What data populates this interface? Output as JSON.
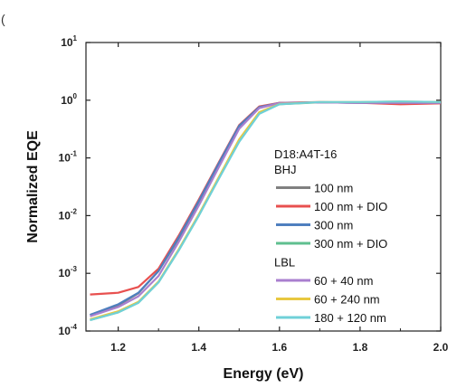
{
  "corner_mark": "(",
  "chart_data": {
    "type": "line",
    "xlabel": "Energy (eV)",
    "ylabel": "Normalized EQE",
    "xlim": [
      1.12,
      2.0
    ],
    "ylim": [
      0.0001,
      10
    ],
    "yscale": "log",
    "xticks": [
      "1.2",
      "1.4",
      "1.6",
      "1.8",
      "2.0"
    ],
    "xtick_values": [
      1.2,
      1.4,
      1.6,
      1.8,
      2.0
    ],
    "yticks": [
      {
        "base": "10",
        "exp": "-4",
        "value": 0.0001
      },
      {
        "base": "10",
        "exp": "-3",
        "value": 0.001
      },
      {
        "base": "10",
        "exp": "-2",
        "value": 0.01
      },
      {
        "base": "10",
        "exp": "-1",
        "value": 0.1
      },
      {
        "base": "10",
        "exp": "0",
        "value": 1
      },
      {
        "base": "10",
        "exp": "1",
        "value": 10
      }
    ],
    "grid": false,
    "legend": {
      "placement": "right-center",
      "title": "D18:A4T-16",
      "groups": [
        "BHJ",
        "LBL"
      ]
    },
    "series": [
      {
        "name": "100 nm",
        "group": "BHJ",
        "color": "#808080",
        "x": [
          1.13,
          1.2,
          1.25,
          1.3,
          1.35,
          1.4,
          1.45,
          1.5,
          1.55,
          1.6,
          1.7,
          1.8,
          1.9,
          2.0
        ],
        "y": [
          0.00019,
          0.00028,
          0.00045,
          0.0011,
          0.004,
          0.017,
          0.08,
          0.35,
          0.75,
          0.9,
          0.92,
          0.9,
          0.9,
          0.9
        ]
      },
      {
        "name": "100 nm + DIO",
        "group": "BHJ",
        "color": "#e8504f",
        "x": [
          1.13,
          1.2,
          1.25,
          1.3,
          1.35,
          1.4,
          1.45,
          1.5,
          1.55,
          1.6,
          1.7,
          1.8,
          1.9,
          2.0
        ],
        "y": [
          0.00043,
          0.00046,
          0.00058,
          0.0012,
          0.0045,
          0.019,
          0.085,
          0.37,
          0.78,
          0.9,
          0.93,
          0.9,
          0.85,
          0.88
        ]
      },
      {
        "name": "300 nm",
        "group": "BHJ",
        "color": "#4f7fbf",
        "x": [
          1.13,
          1.2,
          1.25,
          1.3,
          1.35,
          1.4,
          1.45,
          1.5,
          1.55,
          1.6,
          1.7,
          1.8,
          1.9,
          2.0
        ],
        "y": [
          0.00019,
          0.00029,
          0.00046,
          0.0011,
          0.0042,
          0.018,
          0.082,
          0.36,
          0.76,
          0.89,
          0.92,
          0.9,
          0.9,
          0.9
        ]
      },
      {
        "name": "300 nm + DIO",
        "group": "BHJ",
        "color": "#5fbf8f",
        "x": [
          1.13,
          1.2,
          1.25,
          1.3,
          1.35,
          1.4,
          1.45,
          1.5,
          1.55,
          1.6,
          1.7,
          1.8,
          1.9,
          2.0
        ],
        "y": [
          0.000155,
          0.00021,
          0.00031,
          0.0007,
          0.0025,
          0.01,
          0.045,
          0.2,
          0.6,
          0.85,
          0.92,
          0.92,
          0.93,
          0.92
        ]
      },
      {
        "name": "60 + 40 nm",
        "group": "LBL",
        "color": "#a97fcf",
        "x": [
          1.13,
          1.2,
          1.25,
          1.3,
          1.35,
          1.4,
          1.45,
          1.5,
          1.55,
          1.6,
          1.7,
          1.8,
          1.9,
          2.0
        ],
        "y": [
          0.00018,
          0.00026,
          0.0004,
          0.0009,
          0.0035,
          0.015,
          0.07,
          0.32,
          0.73,
          0.89,
          0.92,
          0.9,
          0.9,
          0.9
        ]
      },
      {
        "name": "60 + 240 nm",
        "group": "LBL",
        "color": "#e8c840",
        "x": [
          1.13,
          1.2,
          1.25,
          1.3,
          1.35,
          1.4,
          1.45,
          1.5,
          1.55,
          1.6,
          1.7,
          1.8,
          1.9,
          2.0
        ],
        "y": [
          0.00016,
          0.00022,
          0.00032,
          0.00072,
          0.0026,
          0.0105,
          0.047,
          0.21,
          0.62,
          0.86,
          0.93,
          0.93,
          0.95,
          0.93
        ]
      },
      {
        "name": "180 + 120 nm",
        "group": "LBL",
        "color": "#6fd0d8",
        "x": [
          1.13,
          1.2,
          1.25,
          1.3,
          1.35,
          1.4,
          1.45,
          1.5,
          1.55,
          1.6,
          1.7,
          1.8,
          1.9,
          2.0
        ],
        "y": [
          0.000155,
          0.00021,
          0.00031,
          0.0007,
          0.0025,
          0.01,
          0.044,
          0.19,
          0.58,
          0.85,
          0.93,
          0.93,
          0.95,
          0.93
        ]
      }
    ]
  }
}
